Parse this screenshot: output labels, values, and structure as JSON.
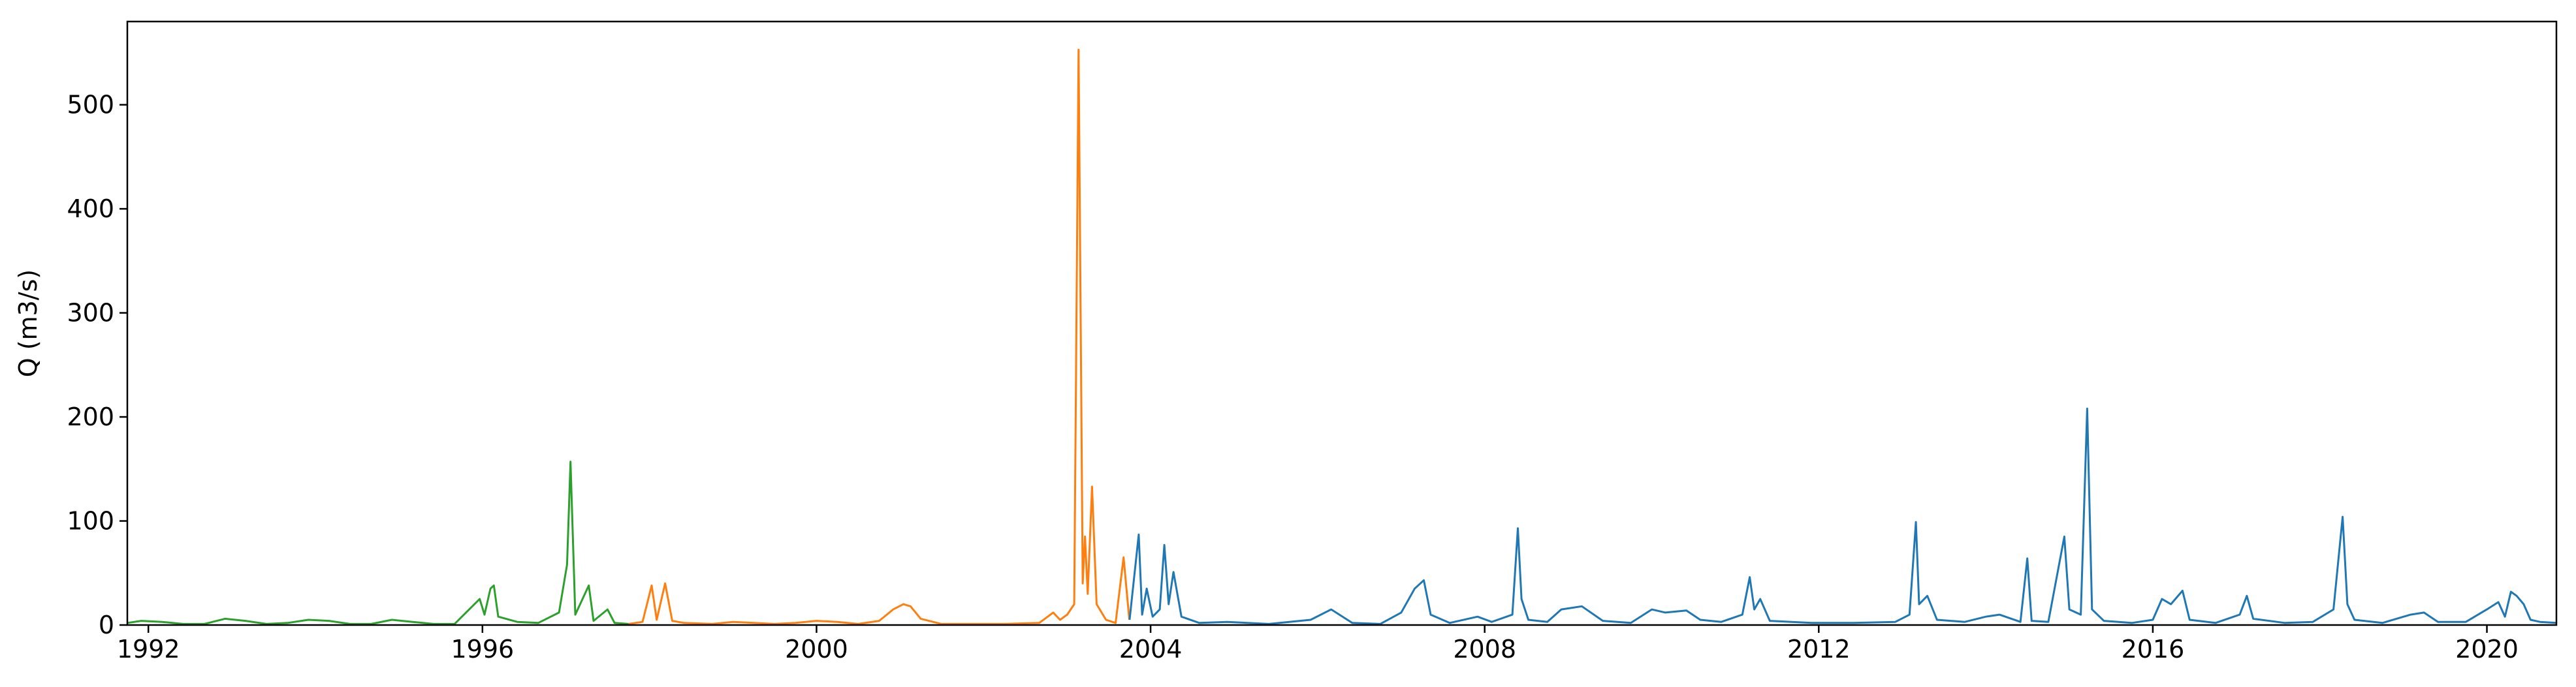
{
  "chart_data": {
    "type": "line",
    "title": "",
    "xlabel": "",
    "ylabel": "Q (m3/s)",
    "xlim": [
      "1991-10-01",
      "2020-10-31"
    ],
    "ylim": [
      0,
      580
    ],
    "x_ticks": [
      "1992",
      "1996",
      "2000",
      "2004",
      "2008",
      "2012",
      "2016",
      "2020"
    ],
    "y_ticks": [
      "0",
      "100",
      "200",
      "300",
      "400",
      "500"
    ],
    "grid": false,
    "legend": "none",
    "series": [
      {
        "color": "#2ca02c",
        "points": [
          [
            "1991-10-01",
            2
          ],
          [
            "1991-12-01",
            4
          ],
          [
            "1992-03-01",
            3
          ],
          [
            "1992-06-01",
            1
          ],
          [
            "1992-09-01",
            1
          ],
          [
            "1992-12-01",
            6
          ],
          [
            "1993-03-01",
            4
          ],
          [
            "1993-06-01",
            1
          ],
          [
            "1993-09-01",
            2
          ],
          [
            "1993-12-01",
            5
          ],
          [
            "1994-03-01",
            4
          ],
          [
            "1994-06-01",
            1
          ],
          [
            "1994-09-01",
            1
          ],
          [
            "1994-12-01",
            5
          ],
          [
            "1995-03-01",
            3
          ],
          [
            "1995-06-01",
            1
          ],
          [
            "1995-09-01",
            1
          ],
          [
            "1995-12-20",
            25
          ],
          [
            "1996-01-10",
            10
          ],
          [
            "1996-02-05",
            35
          ],
          [
            "1996-02-20",
            38
          ],
          [
            "1996-03-10",
            8
          ],
          [
            "1996-06-01",
            3
          ],
          [
            "1996-09-01",
            2
          ],
          [
            "1996-12-01",
            12
          ],
          [
            "1997-01-05",
            58
          ],
          [
            "1997-01-20",
            157
          ],
          [
            "1997-02-10",
            10
          ],
          [
            "1997-04-10",
            38
          ],
          [
            "1997-05-01",
            4
          ],
          [
            "1997-07-01",
            15
          ],
          [
            "1997-08-01",
            2
          ],
          [
            "1997-10-01",
            1
          ]
        ]
      },
      {
        "color": "#ff7f0e",
        "points": [
          [
            "1997-10-01",
            1
          ],
          [
            "1997-12-01",
            3
          ],
          [
            "1998-01-10",
            38
          ],
          [
            "1998-02-01",
            5
          ],
          [
            "1998-03-10",
            40
          ],
          [
            "1998-04-10",
            4
          ],
          [
            "1998-06-01",
            2
          ],
          [
            "1998-10-01",
            1
          ],
          [
            "1999-01-01",
            3
          ],
          [
            "1999-04-01",
            2
          ],
          [
            "1999-07-01",
            1
          ],
          [
            "1999-10-01",
            2
          ],
          [
            "2000-01-01",
            4
          ],
          [
            "2000-04-01",
            3
          ],
          [
            "2000-07-01",
            1
          ],
          [
            "2000-10-01",
            4
          ],
          [
            "2000-12-01",
            15
          ],
          [
            "2001-01-15",
            20
          ],
          [
            "2001-02-15",
            18
          ],
          [
            "2001-04-01",
            6
          ],
          [
            "2001-07-01",
            1
          ],
          [
            "2001-10-01",
            1
          ],
          [
            "2002-04-01",
            1
          ],
          [
            "2002-09-01",
            2
          ],
          [
            "2002-11-01",
            12
          ],
          [
            "2002-12-01",
            5
          ],
          [
            "2003-01-01",
            10
          ],
          [
            "2003-02-01",
            20
          ],
          [
            "2003-02-20",
            553
          ],
          [
            "2003-03-10",
            40
          ],
          [
            "2003-03-20",
            85
          ],
          [
            "2003-04-01",
            30
          ],
          [
            "2003-04-20",
            133
          ],
          [
            "2003-05-10",
            20
          ],
          [
            "2003-06-20",
            5
          ],
          [
            "2003-08-01",
            2
          ],
          [
            "2003-09-05",
            65
          ],
          [
            "2003-09-30",
            5
          ]
        ]
      },
      {
        "color": "#1f77b4",
        "points": [
          [
            "2003-10-01",
            5
          ],
          [
            "2003-11-10",
            87
          ],
          [
            "2003-11-25",
            10
          ],
          [
            "2003-12-15",
            35
          ],
          [
            "2004-01-10",
            8
          ],
          [
            "2004-02-10",
            15
          ],
          [
            "2004-03-01",
            77
          ],
          [
            "2004-03-20",
            20
          ],
          [
            "2004-04-10",
            51
          ],
          [
            "2004-05-15",
            8
          ],
          [
            "2004-08-01",
            2
          ],
          [
            "2004-12-01",
            3
          ],
          [
            "2005-06-01",
            1
          ],
          [
            "2005-12-01",
            5
          ],
          [
            "2006-03-01",
            15
          ],
          [
            "2006-06-01",
            2
          ],
          [
            "2006-10-01",
            1
          ],
          [
            "2007-01-01",
            12
          ],
          [
            "2007-03-01",
            35
          ],
          [
            "2007-04-10",
            43
          ],
          [
            "2007-05-10",
            10
          ],
          [
            "2007-08-01",
            2
          ],
          [
            "2007-12-01",
            8
          ],
          [
            "2008-02-01",
            3
          ],
          [
            "2008-05-01",
            10
          ],
          [
            "2008-05-25",
            93
          ],
          [
            "2008-06-10",
            25
          ],
          [
            "2008-07-10",
            5
          ],
          [
            "2008-10-01",
            3
          ],
          [
            "2008-12-01",
            15
          ],
          [
            "2009-03-01",
            18
          ],
          [
            "2009-06-01",
            4
          ],
          [
            "2009-10-01",
            2
          ],
          [
            "2010-01-01",
            15
          ],
          [
            "2010-03-01",
            12
          ],
          [
            "2010-06-01",
            14
          ],
          [
            "2010-08-01",
            5
          ],
          [
            "2010-11-01",
            3
          ],
          [
            "2011-02-01",
            10
          ],
          [
            "2011-03-05",
            46
          ],
          [
            "2011-03-25",
            15
          ],
          [
            "2011-04-20",
            25
          ],
          [
            "2011-06-01",
            4
          ],
          [
            "2011-12-01",
            2
          ],
          [
            "2012-06-01",
            2
          ],
          [
            "2012-12-01",
            3
          ],
          [
            "2013-02-01",
            10
          ],
          [
            "2013-03-01",
            99
          ],
          [
            "2013-03-15",
            20
          ],
          [
            "2013-04-20",
            28
          ],
          [
            "2013-06-01",
            5
          ],
          [
            "2013-10-01",
            3
          ],
          [
            "2014-01-01",
            8
          ],
          [
            "2014-03-01",
            10
          ],
          [
            "2014-06-01",
            3
          ],
          [
            "2014-07-01",
            64
          ],
          [
            "2014-07-20",
            4
          ],
          [
            "2014-10-01",
            3
          ],
          [
            "2014-12-10",
            85
          ],
          [
            "2015-01-01",
            15
          ],
          [
            "2015-02-20",
            10
          ],
          [
            "2015-03-20",
            208
          ],
          [
            "2015-04-10",
            15
          ],
          [
            "2015-06-01",
            4
          ],
          [
            "2015-10-01",
            2
          ],
          [
            "2016-01-01",
            5
          ],
          [
            "2016-02-10",
            25
          ],
          [
            "2016-03-20",
            20
          ],
          [
            "2016-05-10",
            33
          ],
          [
            "2016-06-10",
            5
          ],
          [
            "2016-10-01",
            2
          ],
          [
            "2017-01-15",
            10
          ],
          [
            "2017-02-15",
            28
          ],
          [
            "2017-03-15",
            6
          ],
          [
            "2017-08-01",
            2
          ],
          [
            "2017-12-01",
            3
          ],
          [
            "2018-03-01",
            15
          ],
          [
            "2018-04-10",
            104
          ],
          [
            "2018-05-01",
            20
          ],
          [
            "2018-06-01",
            5
          ],
          [
            "2018-10-01",
            2
          ],
          [
            "2019-02-01",
            10
          ],
          [
            "2019-04-01",
            12
          ],
          [
            "2019-06-01",
            3
          ],
          [
            "2019-10-01",
            3
          ],
          [
            "2020-01-01",
            15
          ],
          [
            "2020-02-20",
            22
          ],
          [
            "2020-03-20",
            8
          ],
          [
            "2020-04-15",
            32
          ],
          [
            "2020-05-10",
            28
          ],
          [
            "2020-06-10",
            20
          ],
          [
            "2020-07-10",
            5
          ],
          [
            "2020-08-20",
            3
          ],
          [
            "2020-10-31",
            2
          ]
        ]
      }
    ]
  }
}
